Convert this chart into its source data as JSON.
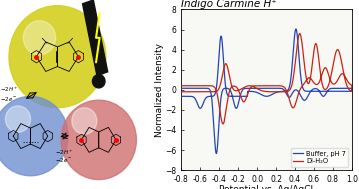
{
  "title": "Indigo Carmine H⁺",
  "xlabel": "Potential vs. Ag/AgCl",
  "ylabel": "Normalized Intensity",
  "xlim": [
    -0.8,
    1.0
  ],
  "ylim": [
    -8,
    8
  ],
  "xticks": [
    -0.8,
    -0.6,
    -0.4,
    -0.2,
    0.0,
    0.2,
    0.4,
    0.6,
    0.8,
    1.0
  ],
  "yticks": [
    -8,
    -6,
    -4,
    -2,
    0,
    2,
    4,
    6,
    8
  ],
  "legend": [
    "Buffer, pH 7",
    "DI-H₂O"
  ],
  "blue_color": "#2244bb",
  "red_color": "#cc2211",
  "background_color": "#f8f8f5",
  "title_fontsize": 7.5,
  "axis_fontsize": 6.5,
  "tick_fontsize": 5.5,
  "yellow_color": "#d4d020",
  "blue_circle_color": "#7090d0",
  "red_circle_color": "#d07070"
}
